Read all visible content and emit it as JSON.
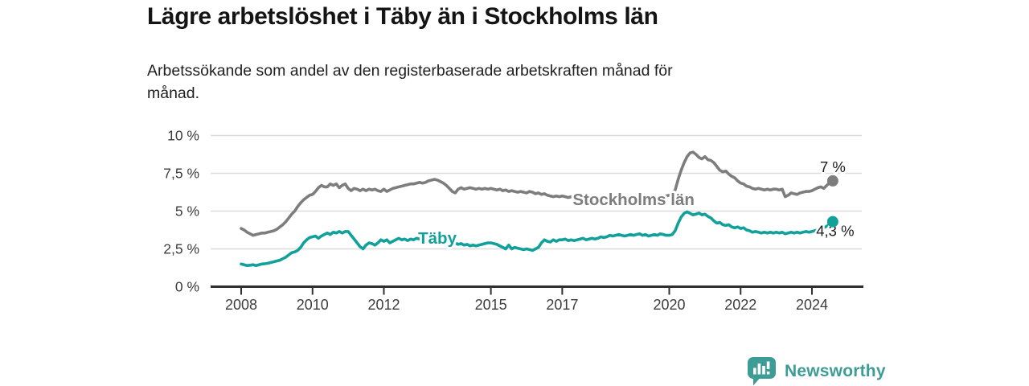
{
  "header": {
    "title": "Lägre arbetslöshet i Täby än i Stockholms län",
    "subtitle": "Arbetssökande som andel av den registerbaserade arbetskraften månad för\nmånad."
  },
  "chart_data": {
    "type": "line",
    "title": "Lägre arbetslöshet i Täby än i Stockholms län",
    "xlabel": "",
    "ylabel": "%",
    "x_start_year": 2008,
    "x_step_months": 1,
    "xlim": [
      2007.14,
      2025.4
    ],
    "ylim": [
      0,
      10
    ],
    "grid": true,
    "x_ticks": [
      2008,
      2010,
      2012,
      2015,
      2017,
      2020,
      2022,
      2024
    ],
    "x_tick_labels": [
      "2008",
      "2010",
      "2012",
      "2015",
      "2017",
      "2020",
      "2022",
      "2024"
    ],
    "y_ticks": [
      0,
      2.5,
      5,
      7.5,
      10
    ],
    "y_tick_labels": [
      "0 %",
      "2,5 %",
      "5 %",
      "7,5 %",
      "10 %"
    ],
    "series": [
      {
        "name": "Stockholms län",
        "color": "#7d7d7d",
        "label": {
          "text": "Stockholms län",
          "x": 2019.0,
          "y": 5.4
        },
        "end_label": {
          "text": "7 %",
          "dx": 0,
          "dy": -11
        },
        "end_value": 7.0,
        "values": [
          3.85,
          3.75,
          3.6,
          3.5,
          3.4,
          3.45,
          3.5,
          3.55,
          3.55,
          3.6,
          3.65,
          3.7,
          3.8,
          3.95,
          4.1,
          4.3,
          4.55,
          4.8,
          5.0,
          5.3,
          5.55,
          5.75,
          5.9,
          6.05,
          6.1,
          6.3,
          6.55,
          6.7,
          6.6,
          6.6,
          6.8,
          6.7,
          6.8,
          6.55,
          6.7,
          6.8,
          6.5,
          6.35,
          6.5,
          6.45,
          6.35,
          6.45,
          6.35,
          6.45,
          6.4,
          6.45,
          6.35,
          6.3,
          6.45,
          6.3,
          6.4,
          6.5,
          6.55,
          6.6,
          6.65,
          6.7,
          6.75,
          6.8,
          6.8,
          6.85,
          6.9,
          6.85,
          6.9,
          7.0,
          7.05,
          7.1,
          7.05,
          6.95,
          6.85,
          6.7,
          6.5,
          6.3,
          6.2,
          6.45,
          6.55,
          6.45,
          6.5,
          6.55,
          6.5,
          6.45,
          6.5,
          6.45,
          6.5,
          6.45,
          6.5,
          6.45,
          6.4,
          6.45,
          6.35,
          6.4,
          6.3,
          6.35,
          6.3,
          6.25,
          6.3,
          6.25,
          6.2,
          6.3,
          6.25,
          6.15,
          6.2,
          6.1,
          6.15,
          6.05,
          6.0,
          5.95,
          6.0,
          5.95,
          6.0,
          5.95,
          5.9,
          5.95,
          5.85,
          5.9,
          5.85,
          5.8,
          5.85,
          5.8,
          5.75,
          5.8,
          5.75,
          5.8,
          5.75,
          5.7,
          5.75,
          5.7,
          5.75,
          5.7,
          5.75,
          5.7,
          5.75,
          5.8,
          5.8,
          5.85,
          5.8,
          5.85,
          5.9,
          5.85,
          5.9,
          5.95,
          5.9,
          5.95,
          6.0,
          6.0,
          6.05,
          6.1,
          6.4,
          7.1,
          7.7,
          8.2,
          8.6,
          8.85,
          8.9,
          8.75,
          8.55,
          8.45,
          8.6,
          8.4,
          8.35,
          8.2,
          7.95,
          7.7,
          7.6,
          7.65,
          7.45,
          7.3,
          7.2,
          7.0,
          6.85,
          6.8,
          6.65,
          6.6,
          6.5,
          6.45,
          6.5,
          6.45,
          6.4,
          6.45,
          6.4,
          6.45,
          6.45,
          6.4,
          6.45,
          5.95,
          6.05,
          6.2,
          6.15,
          6.1,
          6.2,
          6.25,
          6.3,
          6.3,
          6.35,
          6.45,
          6.55,
          6.6,
          6.5,
          6.7,
          6.9,
          7.0
        ]
      },
      {
        "name": "Täby",
        "color": "#12a09a",
        "label": {
          "text": "Täby",
          "x": 2013.5,
          "y": 2.85
        },
        "end_label": {
          "text": "4,3 %",
          "dx": 3,
          "dy": 18
        },
        "end_value": 4.3,
        "values": [
          1.5,
          1.45,
          1.4,
          1.42,
          1.45,
          1.4,
          1.45,
          1.5,
          1.52,
          1.55,
          1.6,
          1.65,
          1.7,
          1.75,
          1.85,
          1.95,
          2.1,
          2.25,
          2.3,
          2.4,
          2.6,
          2.9,
          3.1,
          3.25,
          3.3,
          3.35,
          3.2,
          3.35,
          3.45,
          3.55,
          3.45,
          3.6,
          3.55,
          3.65,
          3.55,
          3.65,
          3.65,
          3.4,
          3.15,
          2.9,
          2.65,
          2.5,
          2.75,
          2.9,
          2.85,
          2.75,
          2.9,
          3.1,
          3.0,
          3.1,
          2.9,
          3.0,
          3.1,
          3.2,
          3.1,
          3.15,
          3.05,
          3.15,
          3.1,
          3.2,
          3.15,
          3.25,
          3.1,
          3.2,
          3.1,
          3.05,
          3.1,
          3.0,
          3.05,
          2.95,
          2.9,
          2.85,
          2.9,
          2.8,
          2.85,
          2.75,
          2.8,
          2.7,
          2.75,
          2.7,
          2.75,
          2.8,
          2.85,
          2.9,
          2.9,
          2.85,
          2.8,
          2.7,
          2.6,
          2.5,
          2.75,
          2.5,
          2.6,
          2.55,
          2.5,
          2.45,
          2.5,
          2.45,
          2.4,
          2.5,
          2.6,
          2.9,
          3.1,
          3.0,
          2.95,
          3.1,
          3.0,
          3.1,
          3.1,
          3.15,
          3.05,
          3.1,
          3.05,
          3.1,
          3.15,
          3.2,
          3.1,
          3.15,
          3.2,
          3.15,
          3.2,
          3.3,
          3.25,
          3.3,
          3.4,
          3.35,
          3.4,
          3.45,
          3.4,
          3.35,
          3.4,
          3.45,
          3.4,
          3.45,
          3.5,
          3.4,
          3.45,
          3.35,
          3.4,
          3.45,
          3.4,
          3.5,
          3.45,
          3.4,
          3.4,
          3.45,
          3.7,
          4.2,
          4.6,
          4.85,
          4.95,
          4.85,
          4.75,
          4.8,
          4.87,
          4.75,
          4.8,
          4.65,
          4.55,
          4.35,
          4.2,
          4.25,
          4.1,
          4.05,
          4.1,
          3.95,
          3.9,
          3.95,
          3.85,
          3.9,
          3.75,
          3.7,
          3.6,
          3.65,
          3.6,
          3.55,
          3.6,
          3.55,
          3.6,
          3.55,
          3.6,
          3.55,
          3.6,
          3.5,
          3.55,
          3.6,
          3.55,
          3.6,
          3.55,
          3.6,
          3.65,
          3.6,
          3.65,
          3.7,
          3.75,
          3.8,
          3.9,
          4.0,
          4.15,
          4.3
        ]
      }
    ],
    "style": {
      "grid_color": "#dcdcdc",
      "axis_color": "#2f2f2f",
      "tick_label_color": "#3c3c3c",
      "annotation_color": "#1d1d1d",
      "legend_position": "inline-labels"
    }
  },
  "branding": {
    "logo_text": "Newsworthy",
    "logo_color": "#3d9c95",
    "icon": "speech-bubble-bar-chart"
  }
}
